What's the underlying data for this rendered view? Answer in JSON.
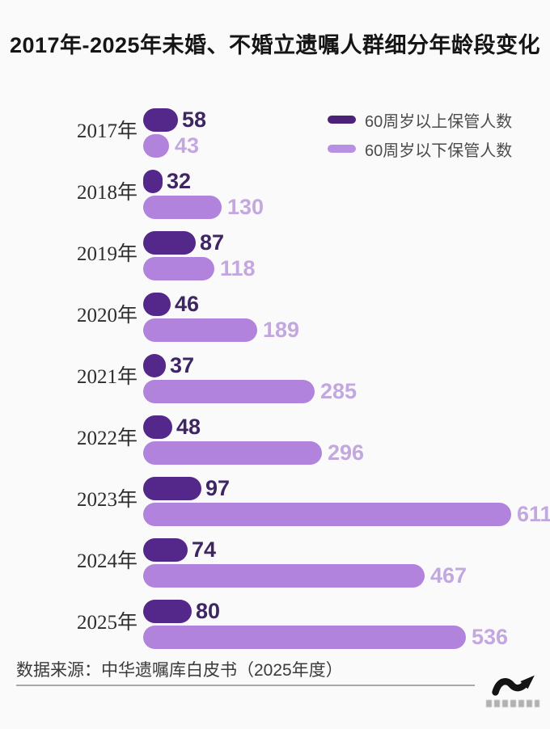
{
  "title": "2017年-2025年未婚、不婚立遗嘱人群细分年龄段变化",
  "legend": {
    "items": [
      {
        "label": "60周岁以上保管人数"
      },
      {
        "label": "60周岁以下保管人数"
      }
    ]
  },
  "chart_data": {
    "type": "bar",
    "orientation": "horizontal",
    "title": "2017年-2025年未婚、不婚立遗嘱人群细分年龄段变化",
    "categories": [
      "2017年",
      "2018年",
      "2019年",
      "2020年",
      "2021年",
      "2022年",
      "2023年",
      "2024年",
      "2025年"
    ],
    "series": [
      {
        "name": "60周岁以上保管人数",
        "values": [
          58,
          32,
          87,
          46,
          37,
          48,
          97,
          74,
          80
        ]
      },
      {
        "name": "60周岁以下保管人数",
        "values": [
          43,
          130,
          118,
          189,
          285,
          296,
          611,
          467,
          536
        ]
      }
    ],
    "value_labels": true,
    "xlim": [
      0,
      650
    ],
    "grid": false,
    "legend_position": "top-right"
  },
  "footer": {
    "source": "数据来源：中华遗嘱库白皮书（2025年度）"
  },
  "colors": {
    "bar_over60": "#54278a",
    "bar_under60": "#b183dd",
    "value_over60": "#3e2663",
    "value_under60": "#c3a8e0",
    "legend_over60": "#4b2277",
    "legend_under60": "#b78fe3",
    "title_text": "#151515",
    "year_text": "#2d2d2d",
    "footer_text": "#3a3a3a",
    "divider": "#a8a8a8",
    "background": "#fbfafb",
    "logo": "#141414"
  }
}
